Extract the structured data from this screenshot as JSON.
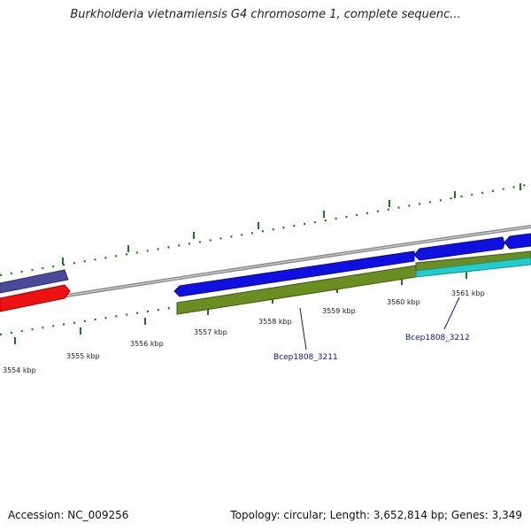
{
  "title": "Burkholderia vietnamiensis G4 chromosome 1, complete sequenc...",
  "footer": {
    "accession": "Accession: NC_009256",
    "topology": "Topology: circular; Length: 3,652,814 bp; Genes: 3,349"
  },
  "scale": {
    "unit": "kbp",
    "ticks": [
      "3554 kbp",
      "3555 kbp",
      "3556 kbp",
      "3557 kbp",
      "3558 kbp",
      "3559 kbp",
      "3560 kbp",
      "3561 kbp"
    ]
  },
  "genes": [
    {
      "label": "Bcep1808_3211"
    },
    {
      "label": "Bcep1808_3212"
    }
  ],
  "colors": {
    "tick": "#1a7a1a",
    "backbone": "#8a8a8a",
    "forward_gene": "#1010e0",
    "reverse_gene": "#6b8e23",
    "other_forward": "#4a4a9a",
    "other_reverse": "#ee1111",
    "cyan_gene": "#22cccc",
    "gene_label": "#0a14a8"
  }
}
